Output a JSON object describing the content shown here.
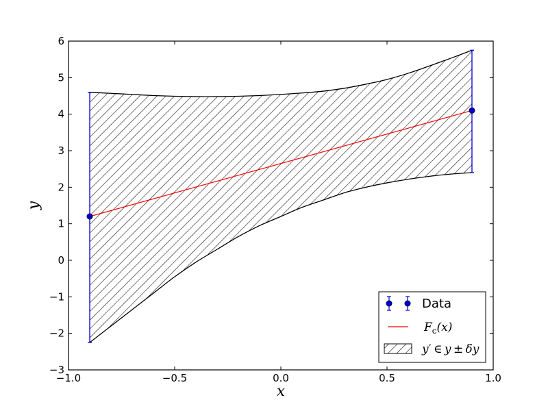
{
  "chart_data": {
    "type": "line",
    "xlabel": "x",
    "ylabel": "y",
    "xlim": [
      -1.0,
      1.0
    ],
    "ylim": [
      -3,
      6
    ],
    "xticks": [
      -1.0,
      -0.5,
      0.0,
      0.5,
      1.0
    ],
    "xtick_labels": [
      "−1.0",
      "−0.5",
      "0.0",
      "0.5",
      "1.0"
    ],
    "yticks": [
      -3,
      -2,
      -1,
      0,
      1,
      2,
      3,
      4,
      5,
      6
    ],
    "ytick_labels": [
      "−3",
      "−2",
      "−1",
      "0",
      "1",
      "2",
      "3",
      "4",
      "5",
      "6"
    ],
    "grid": false,
    "legend_position": "lower-right",
    "series": [
      {
        "name": "Data",
        "kind": "errorbar",
        "color": "#0000cc",
        "x": [
          -0.9,
          0.9
        ],
        "y": [
          1.2,
          4.1
        ],
        "yerr_low": [
          -2.25,
          2.4
        ],
        "yerr_high": [
          4.6,
          5.75
        ]
      },
      {
        "name": "F_c(x)",
        "kind": "line",
        "color": "#ff0000",
        "x": [
          -0.9,
          0.9
        ],
        "y": [
          1.2,
          4.1
        ]
      },
      {
        "name": "y' ∈ y ± δy",
        "kind": "band",
        "hatch": "\\\\",
        "x": [
          -0.9,
          -0.8,
          -0.7,
          -0.6,
          -0.5,
          -0.4,
          -0.3,
          -0.2,
          -0.1,
          0.0,
          0.1,
          0.2,
          0.3,
          0.4,
          0.5,
          0.6,
          0.7,
          0.8,
          0.9
        ],
        "lower": [
          -2.25,
          -1.8,
          -1.35,
          -0.9,
          -0.45,
          -0.05,
          0.3,
          0.65,
          0.95,
          1.2,
          1.45,
          1.65,
          1.85,
          2.0,
          2.12,
          2.22,
          2.3,
          2.36,
          2.4
        ],
        "upper": [
          4.6,
          4.57,
          4.54,
          4.51,
          4.49,
          4.48,
          4.48,
          4.49,
          4.51,
          4.54,
          4.58,
          4.63,
          4.71,
          4.82,
          4.95,
          5.12,
          5.32,
          5.53,
          5.75
        ]
      }
    ],
    "legend": {
      "entries": [
        "Data",
        "F_c(x)",
        "y' ∈ y ± δy"
      ],
      "display": [
        {
          "type": "text",
          "text": "Data"
        },
        {
          "type": "math",
          "base": "F",
          "sub": "c",
          "rest": "(x)"
        },
        {
          "type": "text",
          "text": "y′ ∈ y ± δy"
        }
      ]
    }
  }
}
